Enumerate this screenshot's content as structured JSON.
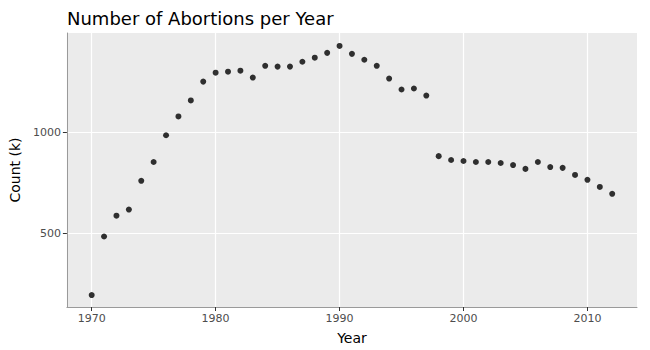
{
  "chart_data": {
    "type": "scatter",
    "title": "Number of Abortions per Year",
    "xlabel": "Year",
    "ylabel": "Count (k)",
    "x": [
      1970,
      1971,
      1972,
      1973,
      1974,
      1975,
      1976,
      1977,
      1978,
      1979,
      1980,
      1981,
      1982,
      1983,
      1984,
      1985,
      1986,
      1987,
      1988,
      1989,
      1990,
      1991,
      1992,
      1993,
      1994,
      1995,
      1996,
      1997,
      1998,
      1999,
      2000,
      2001,
      2002,
      2003,
      2004,
      2005,
      2006,
      2007,
      2008,
      2009,
      2010,
      2011,
      2012
    ],
    "values": [
      196,
      485,
      588,
      618,
      760,
      853,
      985,
      1078,
      1157,
      1250,
      1294,
      1299,
      1304,
      1270,
      1328,
      1324,
      1324,
      1348,
      1368,
      1392,
      1426,
      1387,
      1358,
      1328,
      1265,
      1211,
      1216,
      1181,
      882,
      863,
      858,
      853,
      853,
      848,
      838,
      819,
      853,
      828,
      824,
      789,
      765,
      730,
      696
    ],
    "color": "#000000",
    "xlim": [
      1968,
      2014
    ],
    "xticks": [
      1970,
      1980,
      1990,
      2000,
      2010
    ],
    "ylim": [
      137,
      1490
    ],
    "yticks": [
      500,
      1000
    ],
    "grid": true
  }
}
